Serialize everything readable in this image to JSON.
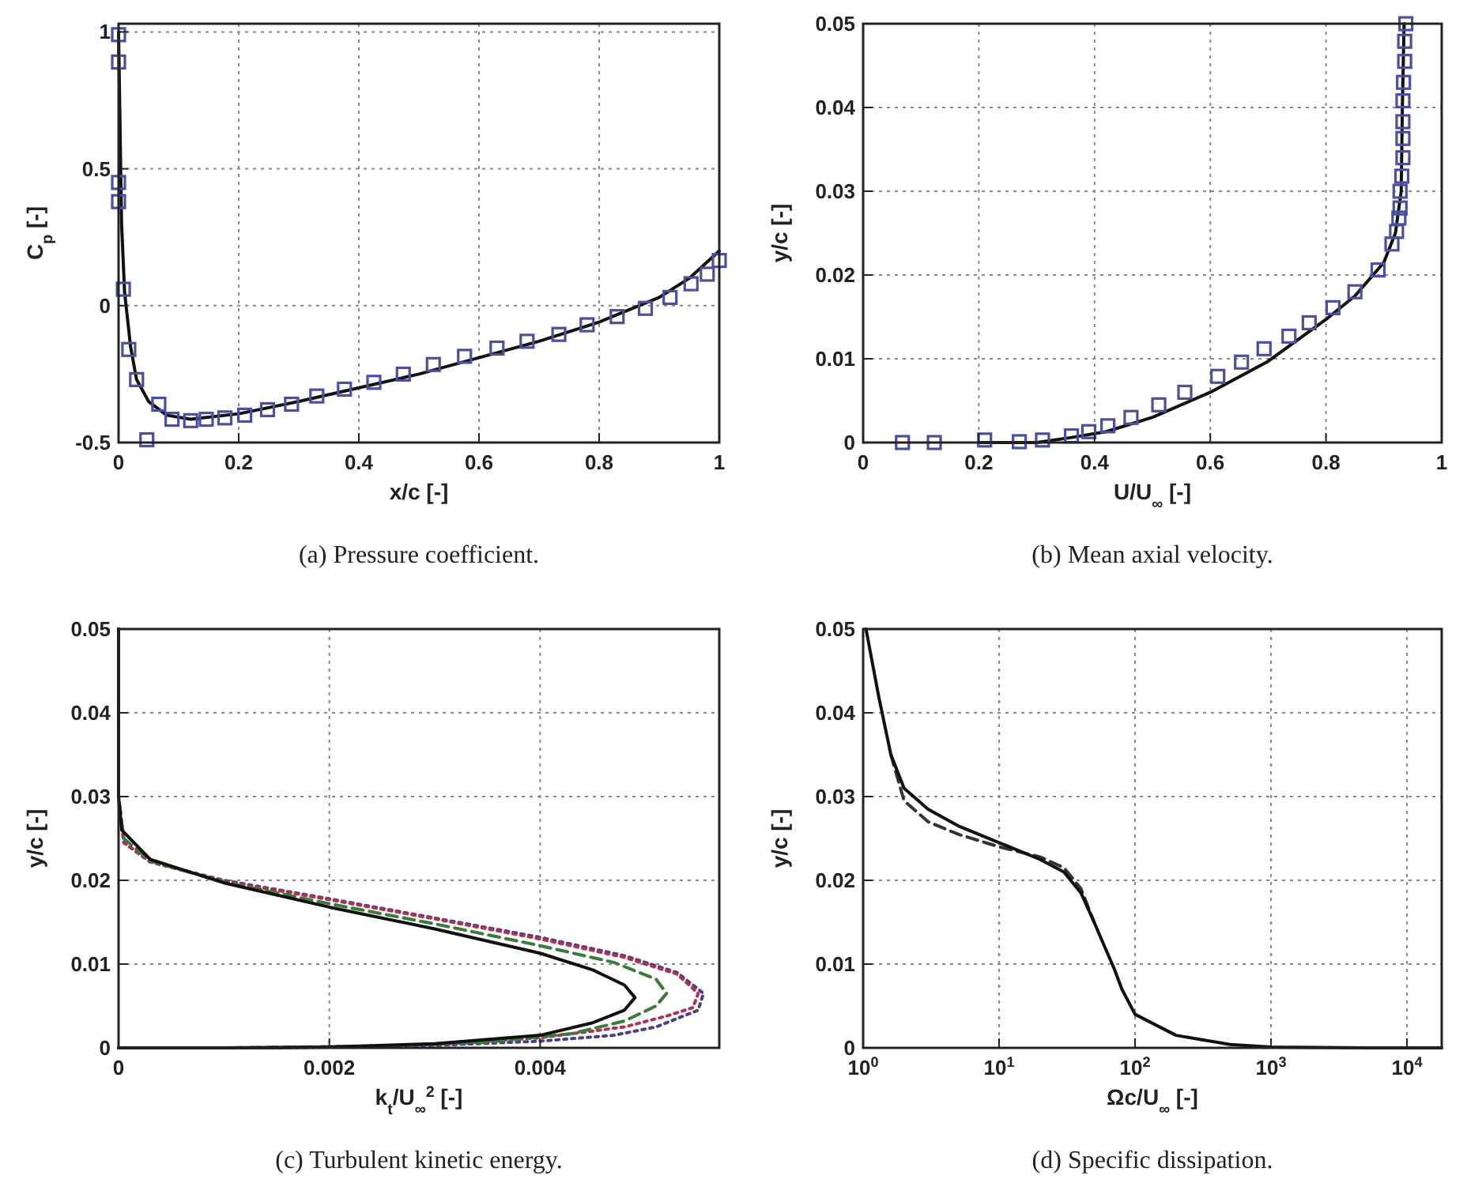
{
  "chart_data": [
    {
      "type": "line",
      "xlabel": "x/c [-]",
      "ylabel": "C$_{p}$ [-]",
      "xlim": [
        0,
        1
      ],
      "ylim": [
        -0.5,
        1.03
      ],
      "xticks": [
        0,
        0.2,
        0.4,
        0.6,
        0.8,
        1
      ],
      "yticks": [
        -0.5,
        0,
        0.5,
        1
      ],
      "grid": true,
      "annotations": [
        "(a) Pressure coefficient."
      ],
      "series": [
        {
          "type": "line",
          "color": "#111111",
          "line_style": "solid",
          "x": [
            0,
            0.005,
            0.01,
            0.02,
            0.03,
            0.05,
            0.08,
            0.12,
            0.2,
            0.3,
            0.4,
            0.5,
            0.6,
            0.7,
            0.8,
            0.9,
            0.95,
            1.0
          ],
          "values": [
            1.0,
            0.3,
            0.05,
            -0.15,
            -0.27,
            -0.35,
            -0.4,
            -0.415,
            -0.395,
            -0.35,
            -0.3,
            -0.25,
            -0.19,
            -0.13,
            -0.06,
            0.03,
            0.1,
            0.2
          ]
        },
        {
          "type": "scatter",
          "color": "#4b4f9e",
          "marker": "square",
          "x": [
            0,
            0,
            0,
            0,
            0.008,
            0.017,
            0.03,
            0.047,
            0.067,
            0.089,
            0.12,
            0.146,
            0.177,
            0.21,
            0.248,
            0.288,
            0.33,
            0.376,
            0.425,
            0.474,
            0.524,
            0.576,
            0.63,
            0.68,
            0.733,
            0.78,
            0.83,
            0.877,
            0.918,
            0.953,
            0.98,
            1.0
          ],
          "values": [
            0.99,
            0.89,
            0.45,
            0.38,
            0.06,
            -0.16,
            -0.27,
            -0.49,
            -0.36,
            -0.415,
            -0.42,
            -0.415,
            -0.41,
            -0.4,
            -0.38,
            -0.36,
            -0.33,
            -0.305,
            -0.28,
            -0.25,
            -0.215,
            -0.185,
            -0.155,
            -0.13,
            -0.105,
            -0.07,
            -0.04,
            -0.01,
            0.03,
            0.08,
            0.115,
            0.165
          ]
        }
      ]
    },
    {
      "type": "line",
      "xlabel": "U/U$_{∞}$ [-]",
      "ylabel": "y/c [-]",
      "xlim": [
        0,
        1
      ],
      "ylim": [
        0,
        0.05
      ],
      "xticks": [
        0,
        0.2,
        0.4,
        0.6,
        0.8,
        1
      ],
      "yticks": [
        0,
        0.01,
        0.02,
        0.03,
        0.04,
        0.05
      ],
      "grid": true,
      "annotations": [
        "(b) Mean axial velocity."
      ],
      "series": [
        {
          "type": "line",
          "color": "#111111",
          "line_style": "solid",
          "x": [
            0.2,
            0.3,
            0.36,
            0.42,
            0.5,
            0.6,
            0.7,
            0.8,
            0.85,
            0.9,
            0.92,
            0.93,
            0.932,
            0.935
          ],
          "values": [
            0,
            0,
            0.0006,
            0.0013,
            0.003,
            0.006,
            0.0097,
            0.0147,
            0.0175,
            0.0215,
            0.025,
            0.03,
            0.04,
            0.05
          ]
        },
        {
          "type": "scatter",
          "color": "#4b4f9e",
          "marker": "square",
          "x": [
            0.068,
            0.123,
            0.21,
            0.27,
            0.31,
            0.36,
            0.39,
            0.423,
            0.463,
            0.511,
            0.556,
            0.613,
            0.654,
            0.693,
            0.736,
            0.771,
            0.812,
            0.85,
            0.89,
            0.914,
            0.922,
            0.926,
            0.928,
            0.928,
            0.931,
            0.933,
            0.933,
            0.933,
            0.933,
            0.934,
            0.936,
            0.936,
            0.938
          ],
          "values": [
            0,
            0,
            0.0003,
            0.0001,
            0.0003,
            0.0008,
            0.0013,
            0.002,
            0.003,
            0.0045,
            0.006,
            0.0079,
            0.0096,
            0.0112,
            0.0127,
            0.0143,
            0.0161,
            0.018,
            0.0206,
            0.0237,
            0.0252,
            0.0268,
            0.028,
            0.03,
            0.0318,
            0.034,
            0.0363,
            0.0383,
            0.0408,
            0.043,
            0.0455,
            0.0479,
            0.05
          ]
        }
      ]
    },
    {
      "type": "line",
      "xlabel": "k$_{t}$/U$_{∞}$$^{2}$ [-]",
      "ylabel": "y/c [-]",
      "xlim": [
        0,
        0.0057
      ],
      "ylim": [
        0,
        0.05
      ],
      "xticks": [
        0,
        0.002,
        0.004
      ],
      "yticks": [
        0,
        0.01,
        0.02,
        0.03,
        0.04,
        0.05
      ],
      "grid": true,
      "annotations": [
        "(c) Turbulent kinetic energy."
      ],
      "series": [
        {
          "type": "line",
          "color": "#4b3f8c",
          "line_style": "dotted",
          "x": [
            0,
            0,
            5e-05,
            0.0003,
            0.001,
            0.002,
            0.003,
            0.004,
            0.0048,
            0.0053,
            0.00555,
            0.0055,
            0.0051,
            0.0047,
            0.004,
            0.003,
            0.0015,
            0
          ],
          "values": [
            0.05,
            0.03,
            0.0245,
            0.0222,
            0.02,
            0.0178,
            0.0155,
            0.0132,
            0.011,
            0.009,
            0.0065,
            0.0045,
            0.0025,
            0.0015,
            0.0008,
            0.0003,
            0,
            0
          ]
        },
        {
          "type": "line",
          "color": "#b03050",
          "line_style": "dotted",
          "x": [
            0,
            0,
            5e-05,
            0.0003,
            0.001,
            0.002,
            0.003,
            0.004,
            0.0048,
            0.0053,
            0.0055,
            0.00545,
            0.0052,
            0.0048,
            0.004,
            0.003,
            0.0015,
            0
          ],
          "values": [
            0.05,
            0.03,
            0.0245,
            0.0222,
            0.0199,
            0.0177,
            0.0154,
            0.013,
            0.0108,
            0.0088,
            0.0065,
            0.0048,
            0.0038,
            0.0025,
            0.0012,
            0.0004,
            0,
            0
          ]
        },
        {
          "type": "line",
          "color": "#3a7a3a",
          "line_style": "dashed",
          "x": [
            0,
            0,
            5e-05,
            0.0003,
            0.001,
            0.002,
            0.003,
            0.004,
            0.0047,
            0.0051,
            0.0052,
            0.0051,
            0.0048,
            0.0043,
            0.0035,
            0.0025,
            0.001,
            0
          ],
          "values": [
            0.05,
            0.03,
            0.025,
            0.0223,
            0.0198,
            0.0172,
            0.0148,
            0.0122,
            0.0102,
            0.0082,
            0.0065,
            0.005,
            0.0032,
            0.0017,
            0.0007,
            0.0002,
            0,
            0
          ]
        },
        {
          "type": "line",
          "color": "#111111",
          "line_style": "solid",
          "x": [
            0,
            0,
            3e-05,
            0.0003,
            0.001,
            0.002,
            0.003,
            0.004,
            0.0045,
            0.0048,
            0.0049,
            0.0048,
            0.0045,
            0.004,
            0.003,
            0.002,
            0.001,
            0
          ],
          "values": [
            0.05,
            0.03,
            0.026,
            0.0225,
            0.0197,
            0.0168,
            0.0142,
            0.0113,
            0.0093,
            0.0075,
            0.006,
            0.0045,
            0.003,
            0.0015,
            0.0005,
            0.0001,
            0,
            0
          ]
        }
      ]
    },
    {
      "type": "line",
      "log": "x",
      "xlabel": "Ωc/U$_{∞}$ [-]",
      "ylabel": "y/c [-]",
      "xlim": [
        1,
        18000
      ],
      "ylim": [
        0,
        0.05
      ],
      "xticks": [
        {
          "value": 1,
          "label": "10$^{0}$"
        },
        {
          "value": 10,
          "label": "10$^{1}$"
        },
        {
          "value": 100,
          "label": "10$^{2}$"
        },
        {
          "value": 1000,
          "label": "10$^{3}$"
        },
        {
          "value": 10000,
          "label": "10$^{4}$"
        }
      ],
      "yticks": [
        0,
        0.01,
        0.02,
        0.03,
        0.04,
        0.05
      ],
      "grid": true,
      "annotations": [
        "(d) Specific dissipation."
      ],
      "series": [
        {
          "type": "line",
          "color": "#333333",
          "line_style": "dashed",
          "x": [
            1.6,
            2,
            3,
            5,
            10,
            20,
            30,
            40,
            50
          ],
          "values": [
            0.035,
            0.0295,
            0.027,
            0.0255,
            0.024,
            0.0228,
            0.0215,
            0.019,
            0.015
          ]
        },
        {
          "type": "line",
          "color": "#111111",
          "line_style": "solid",
          "x": [
            1.05,
            1.3,
            1.6,
            2,
            3,
            5,
            10,
            20,
            30,
            40,
            50,
            60,
            70,
            80,
            100,
            200,
            500,
            1000,
            5000,
            18000
          ],
          "values": [
            0.05,
            0.042,
            0.035,
            0.031,
            0.0285,
            0.0265,
            0.0245,
            0.0225,
            0.021,
            0.0185,
            0.015,
            0.012,
            0.0095,
            0.007,
            0.004,
            0.0015,
            0.0004,
            0.0001,
            0,
            0
          ]
        }
      ]
    }
  ]
}
